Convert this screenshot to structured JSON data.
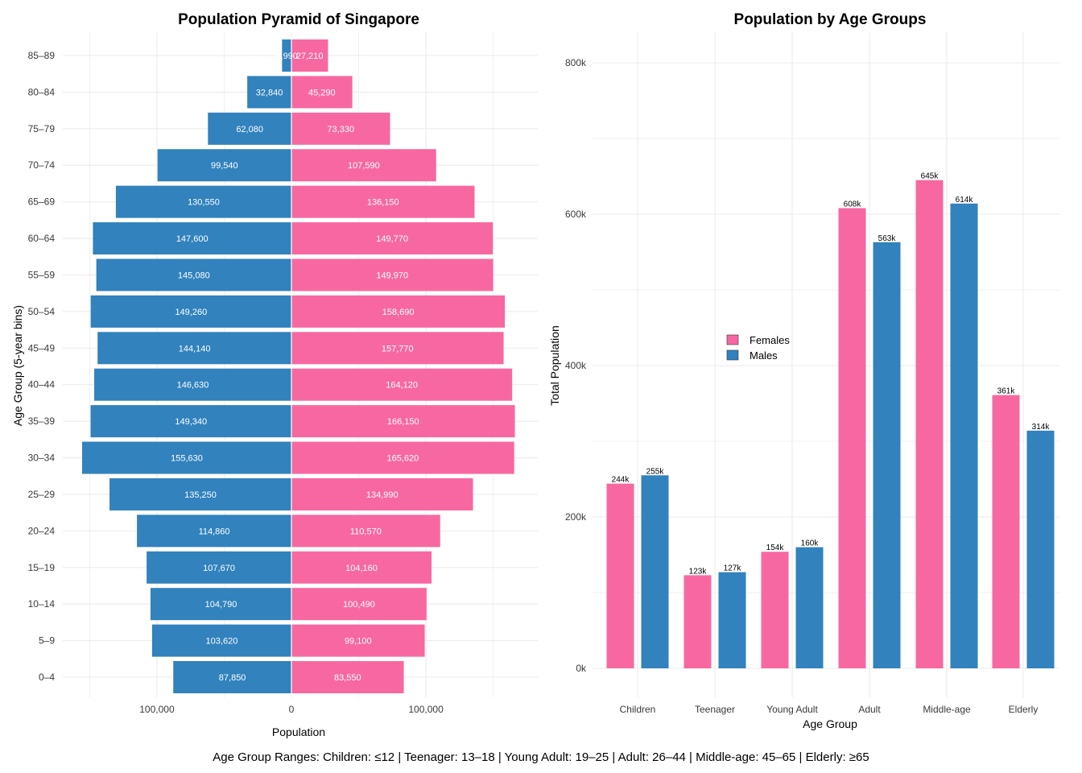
{
  "caption": "Age Group Ranges: Children: ≤12 | Teenager: 13–18 | Young Adult: 19–25 | Adult: 26–44 | Middle-age: 45–65 | Elderly: ≥65",
  "colors": {
    "females": "#f768a1",
    "males": "#3182bd",
    "grid": "#ebebeb"
  },
  "chart_data": [
    {
      "type": "bar",
      "orientation": "horizontal-diverging",
      "title": "Population Pyramid of Singapore",
      "xlabel": "Population",
      "ylabel": "Age Group (5-year bins)",
      "xlim": [
        -170000,
        170000
      ],
      "x_ticks": [
        -100000,
        0,
        100000
      ],
      "x_tick_labels": [
        "100,000",
        "0",
        "100,000"
      ],
      "grid": true,
      "categories": [
        "0–4",
        "5–9",
        "10–14",
        "15–19",
        "20–24",
        "25–29",
        "30–34",
        "35–39",
        "40–44",
        "45–49",
        "50–54",
        "55–59",
        "60–64",
        "65–69",
        "70–74",
        "75–79",
        "80–84",
        "85–89"
      ],
      "series": [
        {
          "values": [
            87850,
            103620,
            104790,
            107670,
            114860,
            135250,
            155630,
            149340,
            146630,
            144140,
            149260,
            145080,
            147600,
            130550,
            99540,
            62080,
            32840,
            6990
          ],
          "labels": [
            "87,850",
            "103,620",
            "104,790",
            "107,670",
            "114,860",
            "135,250",
            "155,630",
            "149,340",
            "146,630",
            "144,140",
            "149,260",
            "145,080",
            "147,600",
            "130,550",
            "99,540",
            "62,080",
            "32,840",
            "6,990"
          ],
          "color": "#3182bd"
        },
        {
          "values": [
            83550,
            99100,
            100490,
            104160,
            110570,
            134990,
            165620,
            166150,
            164120,
            157770,
            158690,
            149970,
            149770,
            136150,
            107590,
            73330,
            45290,
            27210
          ],
          "labels": [
            "83,550",
            "99,100",
            "100,490",
            "104,160",
            "110,570",
            "134,990",
            "165,620",
            "166,150",
            "164,120",
            "157,770",
            "158,690",
            "149,970",
            "149,770",
            "136,150",
            "107,590",
            "73,330",
            "45,290",
            "27,210"
          ],
          "color": "#f768a1"
        }
      ]
    },
    {
      "type": "bar",
      "title": "Population by Age Groups",
      "xlabel": "Age Group",
      "ylabel": "Total Population",
      "ylim": [
        0,
        840000
      ],
      "y_ticks": [
        0,
        200000,
        400000,
        600000,
        800000
      ],
      "y_tick_labels": [
        "0k",
        "200k",
        "400k",
        "600k",
        "800k"
      ],
      "grid": true,
      "legend": "left-middle",
      "categories": [
        "Children",
        "Teenager",
        "Young Adult",
        "Adult",
        "Middle-age",
        "Elderly"
      ],
      "series": [
        {
          "name": "Females",
          "values": [
            244000,
            123000,
            154000,
            608000,
            645000,
            361000
          ],
          "labels": [
            "244k",
            "123k",
            "154k",
            "608k",
            "645k",
            "361k"
          ],
          "color": "#f768a1"
        },
        {
          "name": "Males",
          "values": [
            255000,
            127000,
            160000,
            563000,
            614000,
            314000
          ],
          "labels": [
            "255k",
            "127k",
            "160k",
            "563k",
            "614k",
            "314k"
          ],
          "color": "#3182bd"
        }
      ]
    }
  ]
}
